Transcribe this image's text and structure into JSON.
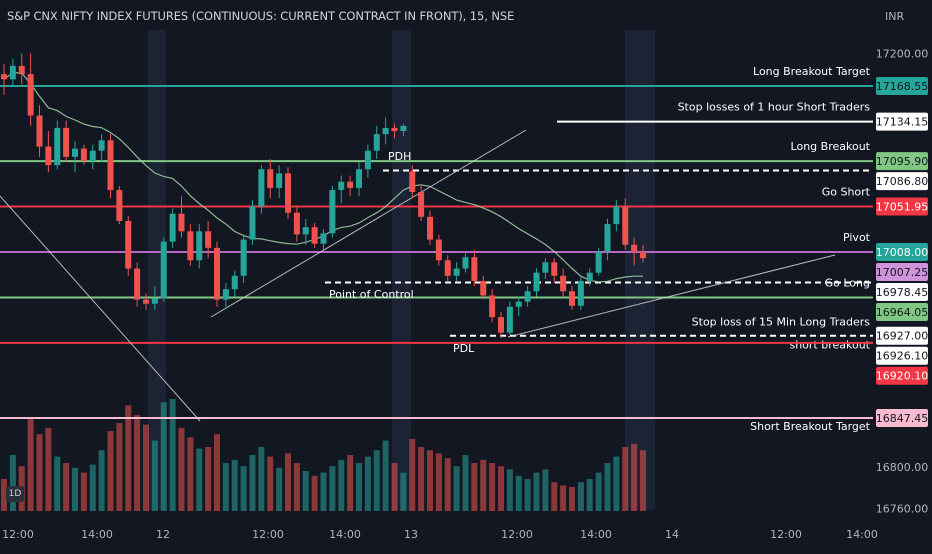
{
  "header": {
    "title": "S&P CNX NIFTY INDEX FUTURES (CONTINUOUS: CURRENT CONTRACT IN FRONT), 15, NSE",
    "currency": "INR",
    "interval_badge": "1D"
  },
  "colors": {
    "background": "#131722",
    "up": "#26a69a",
    "down": "#ef5350",
    "volume_up": "#26a69a",
    "volume_down": "#ef5350",
    "session_highlight": "#1c2334",
    "sma": "#a5d6a7",
    "trendline": "#d1d4dc"
  },
  "chart_data": {
    "type": "candlestick",
    "y_axis": {
      "ticks": [
        17200.0,
        16800.0,
        16760.0
      ],
      "range": [
        16740,
        17220
      ]
    },
    "x_axis": {
      "tick_labels": [
        "12:00",
        "14:00",
        "12",
        "12:00",
        "14:00",
        "13",
        "12:00",
        "14:00",
        "14",
        "12:00",
        "14:00"
      ]
    },
    "levels": [
      {
        "name": "Long Breakout Target",
        "price": "17168.55",
        "value": 17168.55,
        "color": "#26a69a",
        "style": "solid",
        "label_bg": "#26a69a",
        "label_fg": "#131722"
      },
      {
        "name": "Stop losses of 1 hour Short Traders",
        "price": "17134.15",
        "value": 17134.15,
        "color": "#ffffff",
        "style": "solid",
        "label_bg": "#ffffff",
        "label_fg": "#131722"
      },
      {
        "name": "Long Breakout",
        "price": "17095.90",
        "value": 17095.9,
        "color": "#81c784",
        "style": "solid",
        "label_bg": "#81c784",
        "label_fg": "#131722"
      },
      {
        "name": "",
        "price": "17086.80",
        "value": 17086.8,
        "color": "#ffffff",
        "style": "dashed",
        "label_bg": "#ffffff",
        "label_fg": "#131722"
      },
      {
        "name": "Go Short",
        "price": "17051.95",
        "value": 17051.95,
        "color": "#f23645",
        "style": "solid",
        "label_bg": "#f23645",
        "label_fg": "#ffffff"
      },
      {
        "name": "Pivot",
        "price": "17008.00",
        "value": 17008.0,
        "color": "#ba68c8",
        "style": "solid",
        "label_bg": "#26a69a",
        "label_fg": "#ffffff"
      },
      {
        "name": "",
        "price": "17007.25",
        "value": 17007.25,
        "color": "#ba68c8",
        "style": "none",
        "label_bg": "#ce93d8",
        "label_fg": "#131722"
      },
      {
        "name": "",
        "price": "16978.45",
        "value": 16978.45,
        "color": "#ffffff",
        "style": "dashed",
        "label_bg": "#ffffff",
        "label_fg": "#131722"
      },
      {
        "name": "Go Long",
        "price": "16964.05",
        "value": 16964.05,
        "color": "#81c784",
        "style": "solid",
        "label_bg": "#81c784",
        "label_fg": "#131722"
      },
      {
        "name": "Stop loss of 15 Min Long Traders",
        "price": "16927.00",
        "value": 16927.0,
        "color": "#ffffff",
        "style": "dashed",
        "label_bg": "#ffffff",
        "label_fg": "#131722"
      },
      {
        "name": "short breakout",
        "price": "16926.10",
        "value": 16926.1,
        "color": "#ffffff",
        "style": "none",
        "label_bg": "#ffffff",
        "label_fg": "#131722"
      },
      {
        "name": "",
        "price": "16920.10",
        "value": 16920.1,
        "color": "#f23645",
        "style": "solid",
        "label_bg": "#f23645",
        "label_fg": "#ffffff"
      },
      {
        "name": "Short  Breakout Target",
        "price": "16847.45",
        "value": 16847.45,
        "color": "#f8bbd0",
        "style": "solid",
        "label_bg": "#f8bbd0",
        "label_fg": "#131722"
      }
    ],
    "annotations": [
      "PDH",
      "Point of Control",
      "PDL"
    ],
    "candles": [
      {
        "o": 17180,
        "h": 17190,
        "l": 17160,
        "c": 17175
      },
      {
        "o": 17175,
        "h": 17195,
        "l": 17168,
        "c": 17188
      },
      {
        "o": 17188,
        "h": 17200,
        "l": 17170,
        "c": 17180
      },
      {
        "o": 17180,
        "h": 17200,
        "l": 17130,
        "c": 17140
      },
      {
        "o": 17140,
        "h": 17150,
        "l": 17100,
        "c": 17110
      },
      {
        "o": 17110,
        "h": 17125,
        "l": 17085,
        "c": 17092
      },
      {
        "o": 17092,
        "h": 17135,
        "l": 17088,
        "c": 17128
      },
      {
        "o": 17128,
        "h": 17135,
        "l": 17095,
        "c": 17100
      },
      {
        "o": 17100,
        "h": 17115,
        "l": 17085,
        "c": 17108
      },
      {
        "o": 17108,
        "h": 17112,
        "l": 17092,
        "c": 17096
      },
      {
        "o": 17096,
        "h": 17112,
        "l": 17088,
        "c": 17106
      },
      {
        "o": 17106,
        "h": 17122,
        "l": 17095,
        "c": 17116
      },
      {
        "o": 17116,
        "h": 17122,
        "l": 17060,
        "c": 17068
      },
      {
        "o": 17068,
        "h": 17072,
        "l": 17035,
        "c": 17038
      },
      {
        "o": 17038,
        "h": 17043,
        "l": 16985,
        "c": 16992
      },
      {
        "o": 16992,
        "h": 16998,
        "l": 16955,
        "c": 16962
      },
      {
        "o": 16962,
        "h": 16968,
        "l": 16952,
        "c": 16958
      },
      {
        "o": 16958,
        "h": 16975,
        "l": 16952,
        "c": 16963
      },
      {
        "o": 16963,
        "h": 17022,
        "l": 16960,
        "c": 17018
      },
      {
        "o": 17018,
        "h": 17050,
        "l": 17012,
        "c": 17045
      },
      {
        "o": 17045,
        "h": 17062,
        "l": 17022,
        "c": 17028
      },
      {
        "o": 17028,
        "h": 17035,
        "l": 16995,
        "c": 17000
      },
      {
        "o": 17000,
        "h": 17035,
        "l": 16992,
        "c": 17028
      },
      {
        "o": 17028,
        "h": 17038,
        "l": 17002,
        "c": 17012
      },
      {
        "o": 17012,
        "h": 17018,
        "l": 16955,
        "c": 16962
      },
      {
        "o": 16962,
        "h": 16978,
        "l": 16955,
        "c": 16972
      },
      {
        "o": 16972,
        "h": 16990,
        "l": 16965,
        "c": 16985
      },
      {
        "o": 16985,
        "h": 17025,
        "l": 16978,
        "c": 17020
      },
      {
        "o": 17020,
        "h": 17058,
        "l": 17015,
        "c": 17052
      },
      {
        "o": 17052,
        "h": 17092,
        "l": 17045,
        "c": 17088
      },
      {
        "o": 17088,
        "h": 17098,
        "l": 17060,
        "c": 17070
      },
      {
        "o": 17070,
        "h": 17092,
        "l": 17060,
        "c": 17084
      },
      {
        "o": 17084,
        "h": 17090,
        "l": 17040,
        "c": 17046
      },
      {
        "o": 17046,
        "h": 17052,
        "l": 17018,
        "c": 17025
      },
      {
        "o": 17025,
        "h": 17040,
        "l": 17015,
        "c": 17032
      },
      {
        "o": 17032,
        "h": 17036,
        "l": 17012,
        "c": 17016
      },
      {
        "o": 17016,
        "h": 17030,
        "l": 17010,
        "c": 17026
      },
      {
        "o": 17026,
        "h": 17072,
        "l": 17022,
        "c": 17068
      },
      {
        "o": 17068,
        "h": 17082,
        "l": 17055,
        "c": 17076
      },
      {
        "o": 17076,
        "h": 17082,
        "l": 17062,
        "c": 17070
      },
      {
        "o": 17070,
        "h": 17095,
        "l": 17062,
        "c": 17088
      },
      {
        "o": 17088,
        "h": 17112,
        "l": 17080,
        "c": 17106
      },
      {
        "o": 17106,
        "h": 17130,
        "l": 17098,
        "c": 17122
      },
      {
        "o": 17122,
        "h": 17138,
        "l": 17112,
        "c": 17128
      },
      {
        "o": 17128,
        "h": 17132,
        "l": 17118,
        "c": 17125
      },
      {
        "o": 17125,
        "h": 17132,
        "l": 17120,
        "c": 17130
      },
      {
        "o": 17086,
        "h": 17092,
        "l": 17060,
        "c": 17066
      },
      {
        "o": 17066,
        "h": 17072,
        "l": 17038,
        "c": 17042
      },
      {
        "o": 17042,
        "h": 17048,
        "l": 17015,
        "c": 17020
      },
      {
        "o": 17020,
        "h": 17025,
        "l": 16995,
        "c": 17000
      },
      {
        "o": 17000,
        "h": 17005,
        "l": 16980,
        "c": 16985
      },
      {
        "o": 16985,
        "h": 16998,
        "l": 16980,
        "c": 16992
      },
      {
        "o": 16992,
        "h": 17008,
        "l": 16988,
        "c": 17003
      },
      {
        "o": 17003,
        "h": 17010,
        "l": 16975,
        "c": 16980
      },
      {
        "o": 16980,
        "h": 16985,
        "l": 16962,
        "c": 16966
      },
      {
        "o": 16966,
        "h": 16972,
        "l": 16940,
        "c": 16945
      },
      {
        "o": 16945,
        "h": 16950,
        "l": 16925,
        "c": 16930
      },
      {
        "o": 16930,
        "h": 16960,
        "l": 16928,
        "c": 16955
      },
      {
        "o": 16955,
        "h": 16965,
        "l": 16946,
        "c": 16960
      },
      {
        "o": 16960,
        "h": 16975,
        "l": 16955,
        "c": 16970
      },
      {
        "o": 16970,
        "h": 16992,
        "l": 16965,
        "c": 16988
      },
      {
        "o": 16988,
        "h": 17002,
        "l": 16982,
        "c": 16998
      },
      {
        "o": 16998,
        "h": 17002,
        "l": 16978,
        "c": 16985
      },
      {
        "o": 16985,
        "h": 16992,
        "l": 16965,
        "c": 16970
      },
      {
        "o": 16970,
        "h": 16975,
        "l": 16952,
        "c": 16956
      },
      {
        "o": 16956,
        "h": 16985,
        "l": 16952,
        "c": 16980
      },
      {
        "o": 16980,
        "h": 16992,
        "l": 16975,
        "c": 16988
      },
      {
        "o": 16988,
        "h": 17012,
        "l": 16985,
        "c": 17008
      },
      {
        "o": 17008,
        "h": 17040,
        "l": 17000,
        "c": 17035
      },
      {
        "o": 17035,
        "h": 17058,
        "l": 17028,
        "c": 17052
      },
      {
        "o": 17052,
        "h": 17060,
        "l": 17010,
        "c": 17015
      },
      {
        "o": 17015,
        "h": 17022,
        "l": 16995,
        "c": 17008
      },
      {
        "o": 17008,
        "h": 17015,
        "l": 16998,
        "c": 17002
      }
    ],
    "volumes": [
      20,
      35,
      28,
      58,
      48,
      52,
      34,
      30,
      27,
      24,
      29,
      38,
      50,
      55,
      66,
      60,
      54,
      44,
      68,
      70,
      52,
      46,
      39,
      40,
      48,
      30,
      32,
      28,
      35,
      40,
      34,
      27,
      36,
      30,
      25,
      22,
      24,
      28,
      32,
      35,
      30,
      34,
      38,
      44,
      30,
      24,
      45,
      40,
      38,
      36,
      33,
      28,
      35,
      30,
      32,
      30,
      28,
      26,
      22,
      20,
      24,
      26,
      18,
      16,
      15,
      18,
      20,
      24,
      30,
      34,
      40,
      42,
      38
    ]
  }
}
